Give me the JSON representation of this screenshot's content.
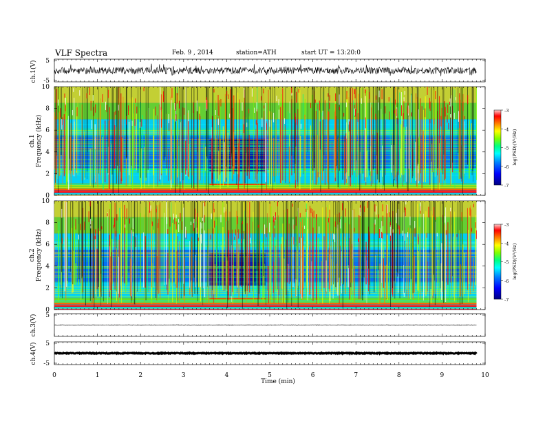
{
  "header": {
    "title": "VLF Spectra",
    "date": "Feb. 9 , 2014",
    "station": "station=ATH",
    "start": "start UT = 13:20:0"
  },
  "chart_data": [
    {
      "type": "line",
      "panel": "ch1",
      "ylabel": "ch.1(V)",
      "ylim": [
        -5,
        5
      ],
      "yticks": [
        "5",
        "-5"
      ],
      "description_values": {
        "baseline": 0,
        "noise_amplitude": 1.5
      }
    },
    {
      "type": "heatmap",
      "panel": "ch1-spectrogram",
      "ylabel_line1": "ch.1",
      "ylabel_line2": "Frequency (kHz)",
      "ylim": [
        0,
        10
      ],
      "yticks": [
        "0",
        "2",
        "4",
        "6",
        "8",
        "10"
      ],
      "colorbar": {
        "label": "log(PSD)(V²/Hz)",
        "ticks": [
          "-3",
          "-4",
          "-5",
          "-6",
          "-7"
        ],
        "range": [
          -7,
          -3
        ]
      }
    },
    {
      "type": "heatmap",
      "panel": "ch2-spectrogram",
      "ylabel_line1": "ch.2",
      "ylabel_line2": "Frequency (kHz)",
      "ylim": [
        0,
        10
      ],
      "yticks": [
        "0",
        "2",
        "4",
        "6",
        "8",
        "10"
      ],
      "colorbar": {
        "label": "log(PSD)(V²/Hz)",
        "ticks": [
          "-3",
          "-4",
          "-5",
          "-6",
          "-7"
        ],
        "range": [
          -7,
          -3
        ]
      }
    },
    {
      "type": "line",
      "panel": "ch3",
      "ylabel": "ch.3(V)",
      "ylim": [
        -5,
        5
      ],
      "yticks": [
        "5"
      ],
      "description_values": {
        "baseline": 0
      }
    },
    {
      "type": "line",
      "panel": "ch4",
      "ylabel": "ch.4(V)",
      "ylim": [
        -5,
        5
      ],
      "yticks": [
        "5",
        "-5"
      ],
      "description_values": {
        "baseline": 0
      }
    }
  ],
  "xaxis": {
    "label": "Time (min)",
    "ticks": [
      "0",
      "1",
      "2",
      "3",
      "4",
      "5",
      "6",
      "7",
      "8",
      "9",
      "10"
    ],
    "xlim": [
      0,
      10
    ],
    "data_end": 9.8
  },
  "colors": {
    "colormap": [
      "#000080",
      "#0000ff",
      "#0080ff",
      "#00ffff",
      "#00ff80",
      "#80ff00",
      "#ffff00",
      "#ff8000",
      "#ff0000",
      "#ffffff"
    ]
  }
}
